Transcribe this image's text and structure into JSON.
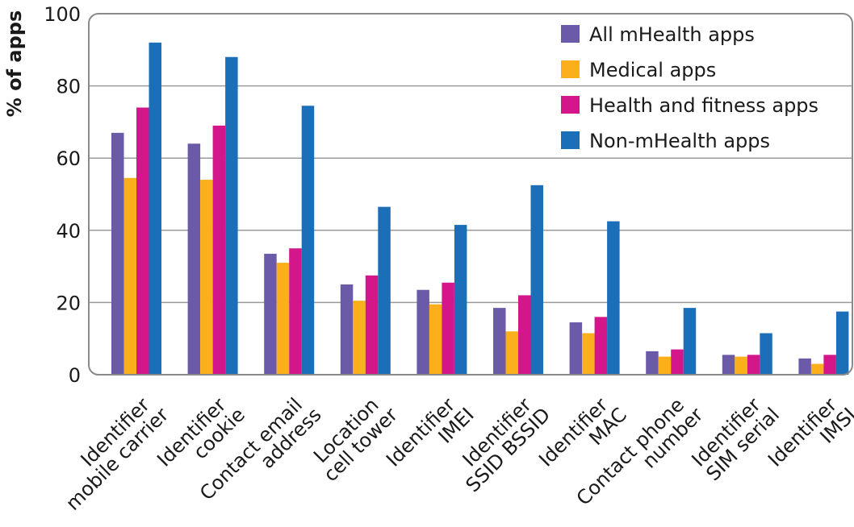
{
  "chart_data": {
    "type": "bar",
    "title": "",
    "xlabel": "",
    "ylabel": "% of apps",
    "ylim": [
      0,
      100
    ],
    "yticks": [
      "0",
      "20",
      "40",
      "60",
      "80",
      "100"
    ],
    "grid": true,
    "legend_position": "top-right",
    "categories": [
      [
        "Identifier",
        "mobile carrier"
      ],
      [
        "Identifier",
        "cookie"
      ],
      [
        "Contact email",
        "address"
      ],
      [
        "Location",
        "cell tower"
      ],
      [
        "Identifier",
        "IMEI"
      ],
      [
        "Identifier",
        "SSID BSSID"
      ],
      [
        "Identifier",
        "MAC"
      ],
      [
        "Contact phone",
        "number"
      ],
      [
        "Identifier",
        "SIM serial"
      ],
      [
        "Identifier",
        "IMSI"
      ]
    ],
    "series": [
      {
        "name": "All mHealth apps",
        "color": "#6b5aa8",
        "values": [
          67,
          64,
          33.5,
          25,
          23.5,
          18.5,
          14.5,
          6.5,
          5.5,
          4.5
        ]
      },
      {
        "name": "Medical apps",
        "color": "#fbb01b",
        "values": [
          54.5,
          54,
          31,
          20.5,
          19.5,
          12,
          11.5,
          5,
          5,
          3
        ]
      },
      {
        "name": "Health and fitness apps",
        "color": "#d3168a",
        "values": [
          74,
          69,
          35,
          27.5,
          25.5,
          22,
          16,
          7,
          5.5,
          5.5
        ]
      },
      {
        "name": "Non-mHealth apps",
        "color": "#1a6fb8",
        "values": [
          92,
          88,
          74.5,
          46.5,
          41.5,
          52.5,
          42.5,
          18.5,
          11.5,
          17.5
        ]
      }
    ]
  }
}
